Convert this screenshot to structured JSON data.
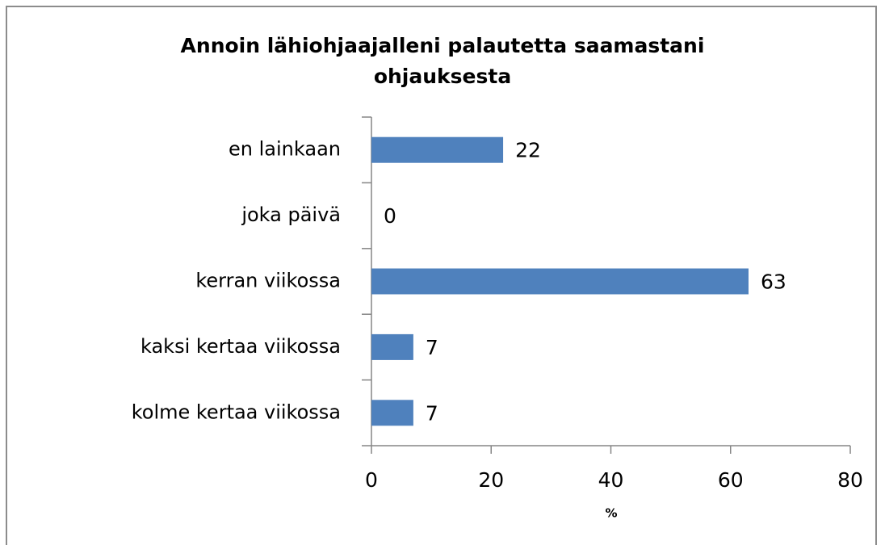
{
  "chart_data": {
    "type": "bar",
    "orientation": "horizontal",
    "title": "Annoin lähiohjaajalleni palautetta saamastani ohjauksesta",
    "x_label": "%",
    "categories": [
      "en lainkaan",
      "joka päivä",
      "kerran viikossa",
      "kaksi kertaa viikossa",
      "kolme kertaa viikossa"
    ],
    "values": [
      22,
      0,
      63,
      7,
      7
    ],
    "color": "#4f81bd",
    "xlim": [
      0,
      80
    ],
    "xticks": [
      0,
      20,
      40,
      60,
      80
    ],
    "grid": false
  }
}
